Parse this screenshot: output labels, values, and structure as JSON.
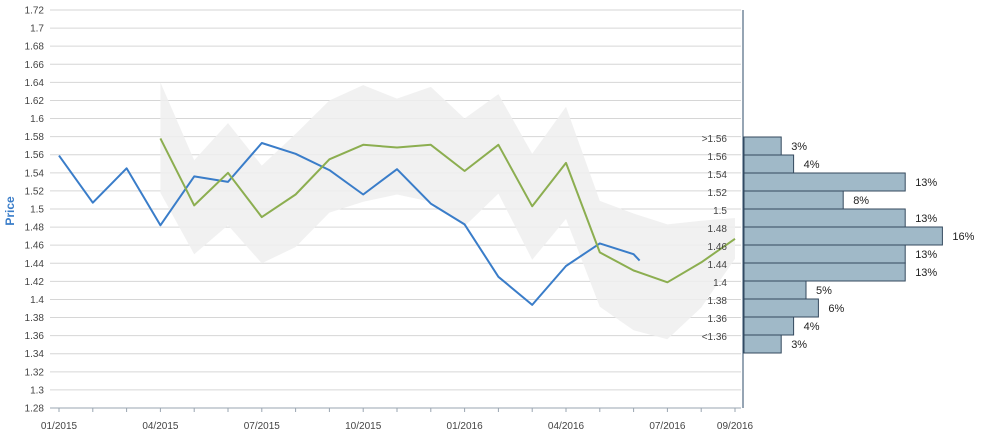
{
  "chart_data": {
    "type": "line",
    "ylabel": "Price",
    "ylim": [
      1.28,
      1.72
    ],
    "y_ticks": [
      "1.28",
      "1.3",
      "1.32",
      "1.34",
      "1.36",
      "1.38",
      "1.4",
      "1.42",
      "1.44",
      "1.46",
      "1.48",
      "1.5",
      "1.52",
      "1.54",
      "1.56",
      "1.58",
      "1.6",
      "1.62",
      "1.64",
      "1.66",
      "1.68",
      "1.7",
      "1.72"
    ],
    "x_ticks": [
      "01/2015",
      "04/2015",
      "07/2015",
      "10/2015",
      "01/2016",
      "04/2016",
      "07/2016",
      "09/2016"
    ],
    "grid": true,
    "colors": {
      "actual": "#3a7dc9",
      "forecast": "#8cae50",
      "band": "#eeeeee",
      "histogram": "#a0b9c8",
      "histogram_border": "#34495e"
    },
    "series": [
      {
        "values": [
          [
            "01/2015",
            1.559
          ],
          [
            "02/2015",
            1.507
          ],
          [
            "03/2015",
            1.545
          ],
          [
            "04/2015",
            1.482
          ],
          [
            "05/2015",
            1.536
          ],
          [
            "06/2015",
            1.53
          ],
          [
            "07/2015",
            1.573
          ],
          [
            "08/2015",
            1.561
          ],
          [
            "09/2015",
            1.543
          ],
          [
            "10/2015",
            1.516
          ],
          [
            "11/2015",
            1.544
          ],
          [
            "12/2015",
            1.506
          ],
          [
            "01/2016",
            1.483
          ],
          [
            "02/2016",
            1.425
          ],
          [
            "03/2016",
            1.394
          ],
          [
            "04/2016",
            1.437
          ],
          [
            "05/2016",
            1.462
          ],
          [
            "06/2016",
            1.45
          ],
          [
            "06/2016",
            1.443
          ]
        ]
      },
      {
        "values": [
          [
            "04/2015",
            1.578
          ],
          [
            "05/2015",
            1.504
          ],
          [
            "06/2015",
            1.54
          ],
          [
            "07/2015",
            1.491
          ],
          [
            "08/2015",
            1.516
          ],
          [
            "09/2015",
            1.555
          ],
          [
            "10/2015",
            1.571
          ],
          [
            "11/2015",
            1.568
          ],
          [
            "12/2015",
            1.571
          ],
          [
            "01/2016",
            1.542
          ],
          [
            "02/2016",
            1.571
          ],
          [
            "03/2016",
            1.503
          ],
          [
            "04/2016",
            1.551
          ],
          [
            "05/2016",
            1.452
          ],
          [
            "06/2016",
            1.432
          ],
          [
            "07/2016",
            1.419
          ],
          [
            "08/2016",
            1.441
          ],
          [
            "09/2016",
            1.467
          ]
        ]
      }
    ],
    "band": {
      "upper": [
        [
          "04/2015",
          1.64
        ],
        [
          "05/2015",
          1.554
        ],
        [
          "06/2015",
          1.595
        ],
        [
          "07/2015",
          1.548
        ],
        [
          "08/2015",
          1.583
        ],
        [
          "09/2015",
          1.62
        ],
        [
          "10/2015",
          1.637
        ],
        [
          "11/2015",
          1.622
        ],
        [
          "12/2015",
          1.635
        ],
        [
          "01/2016",
          1.6
        ],
        [
          "02/2016",
          1.627
        ],
        [
          "03/2016",
          1.561
        ],
        [
          "04/2016",
          1.613
        ],
        [
          "05/2016",
          1.509
        ],
        [
          "06/2016",
          1.495
        ],
        [
          "07/2016",
          1.483
        ],
        [
          "08/2016",
          1.487
        ],
        [
          "09/2016",
          1.49
        ]
      ],
      "lower": [
        [
          "04/2015",
          1.518
        ],
        [
          "05/2015",
          1.45
        ],
        [
          "06/2015",
          1.482
        ],
        [
          "07/2015",
          1.44
        ],
        [
          "08/2015",
          1.458
        ],
        [
          "09/2015",
          1.496
        ],
        [
          "10/2015",
          1.508
        ],
        [
          "11/2015",
          1.516
        ],
        [
          "12/2015",
          1.508
        ],
        [
          "01/2016",
          1.481
        ],
        [
          "02/2016",
          1.517
        ],
        [
          "03/2016",
          1.444
        ],
        [
          "04/2016",
          1.489
        ],
        [
          "05/2016",
          1.392
        ],
        [
          "06/2016",
          1.366
        ],
        [
          "07/2016",
          1.356
        ],
        [
          "08/2016",
          1.391
        ],
        [
          "09/2016",
          1.445
        ]
      ]
    },
    "histogram": [
      {
        "label": ">1.56",
        "pct": "3%",
        "value": 3
      },
      {
        "label": "1.56",
        "pct": "4%",
        "value": 4
      },
      {
        "label": "1.54",
        "pct": "13%",
        "value": 13
      },
      {
        "label": "1.52",
        "pct": "8%",
        "value": 8
      },
      {
        "label": "1.5",
        "pct": "13%",
        "value": 13
      },
      {
        "label": "1.48",
        "pct": "16%",
        "value": 16
      },
      {
        "label": "1.46",
        "pct": "13%",
        "value": 13
      },
      {
        "label": "1.44",
        "pct": "13%",
        "value": 13
      },
      {
        "label": "1.4",
        "pct": "5%",
        "value": 5
      },
      {
        "label": "1.38",
        "pct": "6%",
        "value": 6
      },
      {
        "label": "1.36",
        "pct": "4%",
        "value": 4
      },
      {
        "label": "<1.36",
        "pct": "3%",
        "value": 3
      }
    ]
  }
}
